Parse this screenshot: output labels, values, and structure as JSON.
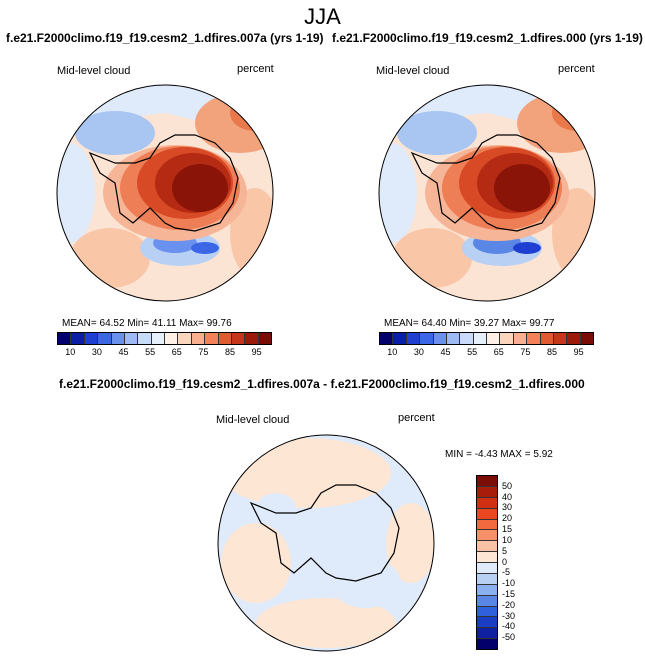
{
  "title": "JJA",
  "panels": [
    {
      "title": "f.e21.F2000climo.f19_f19.cesm2_1.dfires.007a (yrs 1-19)",
      "variable": "Mid-level cloud",
      "units": "percent",
      "stats": {
        "mean": "64.52",
        "min": "41.11",
        "max": "99.76"
      },
      "stats_line": "MEAN=  64.52  Min=  41.11  Max=  99.76"
    },
    {
      "title": "f.e21.F2000climo.f19_f19.cesm2_1.dfires.000 (yrs 1-19)",
      "variable": "Mid-level cloud",
      "units": "percent",
      "stats": {
        "mean": "64.40",
        "min": "39.27",
        "max": "99.77"
      },
      "stats_line": "MEAN=  64.40  Min=  39.27  Max=  99.77"
    }
  ],
  "colorbar_main": {
    "labels": [
      "10",
      "30",
      "45",
      "55",
      "65",
      "75",
      "85",
      "95"
    ],
    "colors": [
      "#04006b",
      "#0a1fa6",
      "#1e3fd1",
      "#3b66e6",
      "#6b91ee",
      "#9dbaf5",
      "#c8dbfa",
      "#e6f0fc",
      "#fdf0e6",
      "#fcd5bd",
      "#f9b08e",
      "#f3815a",
      "#e25a32",
      "#c5361a",
      "#9c1a0a",
      "#7a0d05"
    ]
  },
  "diff_panel": {
    "title": "f.e21.F2000climo.f19_f19.cesm2_1.dfires.007a - f.e21.F2000climo.f19_f19.cesm2_1.dfires.000",
    "variable": "Mid-level cloud",
    "units": "percent",
    "stats_line": "MIN =  -4.43 MAX =   5.92",
    "stats": {
      "min": "-4.43",
      "max": "5.92"
    }
  },
  "colorbar_diff": {
    "labels": [
      "50",
      "40",
      "30",
      "20",
      "15",
      "10",
      "5",
      "0",
      "-5",
      "-10",
      "-15",
      "-20",
      "-30",
      "-40",
      "-50"
    ],
    "colors": [
      "#7a0d05",
      "#a81c0c",
      "#d02f14",
      "#e9471f",
      "#f2683f",
      "#f6906a",
      "#fbc3a6",
      "#fde6d4",
      "#dfeafa",
      "#b9d0f5",
      "#8ab0ef",
      "#5a87e6",
      "#3060dc",
      "#1a3dc4",
      "#0e20a0",
      "#04006b"
    ]
  }
}
